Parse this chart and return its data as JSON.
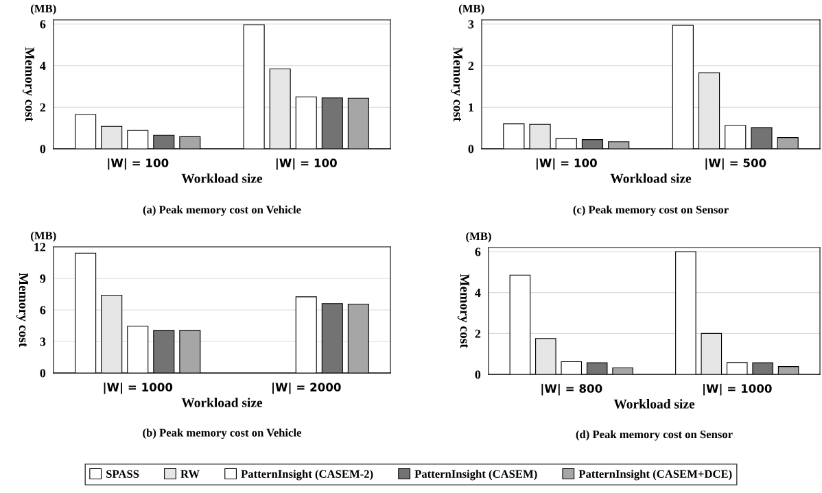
{
  "chart_data": [
    {
      "type": "bar",
      "title": "(a) Peak memory cost on Vehicle",
      "xlabel": "Workload size",
      "ylabel": "Memory cost",
      "annotations": [
        "(MB)"
      ],
      "categories": [
        "|W| = 100",
        "|W| = 100"
      ],
      "ylim": [
        0,
        6.2
      ],
      "yticks": [
        0,
        2,
        4,
        6
      ],
      "grid": "y",
      "legend": "bottom",
      "series": [
        {
          "name": "SPASS",
          "color": "#ffffff",
          "values": [
            1.65,
            5.97
          ]
        },
        {
          "name": "RW",
          "color": "#e6e6e6",
          "values": [
            1.08,
            3.84
          ]
        },
        {
          "name": "PatternInsight (CASEM-2)",
          "color": "#ffffff",
          "values": [
            0.88,
            2.5
          ]
        },
        {
          "name": "PatternInsight (CASEM)",
          "color": "#737373",
          "values": [
            0.65,
            2.45
          ]
        },
        {
          "name": "PatternInsight (CASEM+DCE)",
          "color": "#a6a6a6",
          "values": [
            0.58,
            2.43
          ]
        }
      ]
    },
    {
      "type": "bar",
      "title": "(c) Peak memory cost on Sensor",
      "xlabel": "Workload size",
      "ylabel": "Memory cost",
      "annotations": [
        "(MB)"
      ],
      "categories": [
        "|W| = 100",
        "|W| = 500"
      ],
      "ylim": [
        0,
        3.1
      ],
      "yticks": [
        0,
        1,
        2,
        3
      ],
      "grid": "y",
      "legend": "bottom",
      "series": [
        {
          "name": "SPASS",
          "color": "#ffffff",
          "values": [
            0.6,
            2.97
          ]
        },
        {
          "name": "RW",
          "color": "#e6e6e6",
          "values": [
            0.59,
            1.83
          ]
        },
        {
          "name": "PatternInsight (CASEM-2)",
          "color": "#ffffff",
          "values": [
            0.25,
            0.56
          ]
        },
        {
          "name": "PatternInsight (CASEM)",
          "color": "#737373",
          "values": [
            0.22,
            0.51
          ]
        },
        {
          "name": "PatternInsight (CASEM+DCE)",
          "color": "#a6a6a6",
          "values": [
            0.17,
            0.27
          ]
        }
      ]
    },
    {
      "type": "bar",
      "title": "(b) Peak memory cost on Vehicle",
      "xlabel": "Workload size",
      "ylabel": "Memory cost",
      "annotations": [
        "(MB)"
      ],
      "categories": [
        "|W| = 1000",
        "|W| = 2000"
      ],
      "ylim": [
        0,
        12
      ],
      "yticks": [
        0,
        3,
        6,
        9,
        12
      ],
      "grid": "y",
      "legend": "bottom",
      "series": [
        {
          "name": "SPASS",
          "color": "#ffffff",
          "values": [
            11.4,
            null
          ]
        },
        {
          "name": "RW",
          "color": "#e6e6e6",
          "values": [
            7.4,
            null
          ]
        },
        {
          "name": "PatternInsight (CASEM-2)",
          "color": "#ffffff",
          "values": [
            4.45,
            7.25
          ]
        },
        {
          "name": "PatternInsight (CASEM)",
          "color": "#737373",
          "values": [
            4.05,
            6.6
          ]
        },
        {
          "name": "PatternInsight (CASEM+DCE)",
          "color": "#a6a6a6",
          "values": [
            4.05,
            6.55
          ]
        }
      ]
    },
    {
      "type": "bar",
      "title": "(d) Peak memory cost on Sensor",
      "xlabel": "Workload size",
      "ylabel": "Memory cost",
      "annotations": [
        "(MB)"
      ],
      "categories": [
        "|W| = 800",
        "|W| = 1000"
      ],
      "ylim": [
        0,
        6.2
      ],
      "yticks": [
        0,
        2,
        4,
        6
      ],
      "grid": "y",
      "legend": "bottom",
      "series": [
        {
          "name": "SPASS",
          "color": "#ffffff",
          "values": [
            4.85,
            6.0
          ]
        },
        {
          "name": "RW",
          "color": "#e6e6e6",
          "values": [
            1.75,
            2.0
          ]
        },
        {
          "name": "PatternInsight (CASEM-2)",
          "color": "#ffffff",
          "values": [
            0.62,
            0.58
          ]
        },
        {
          "name": "PatternInsight (CASEM)",
          "color": "#737373",
          "values": [
            0.57,
            0.57
          ]
        },
        {
          "name": "PatternInsight (CASEM+DCE)",
          "color": "#a6a6a6",
          "values": [
            0.32,
            0.38
          ]
        }
      ]
    }
  ]
}
